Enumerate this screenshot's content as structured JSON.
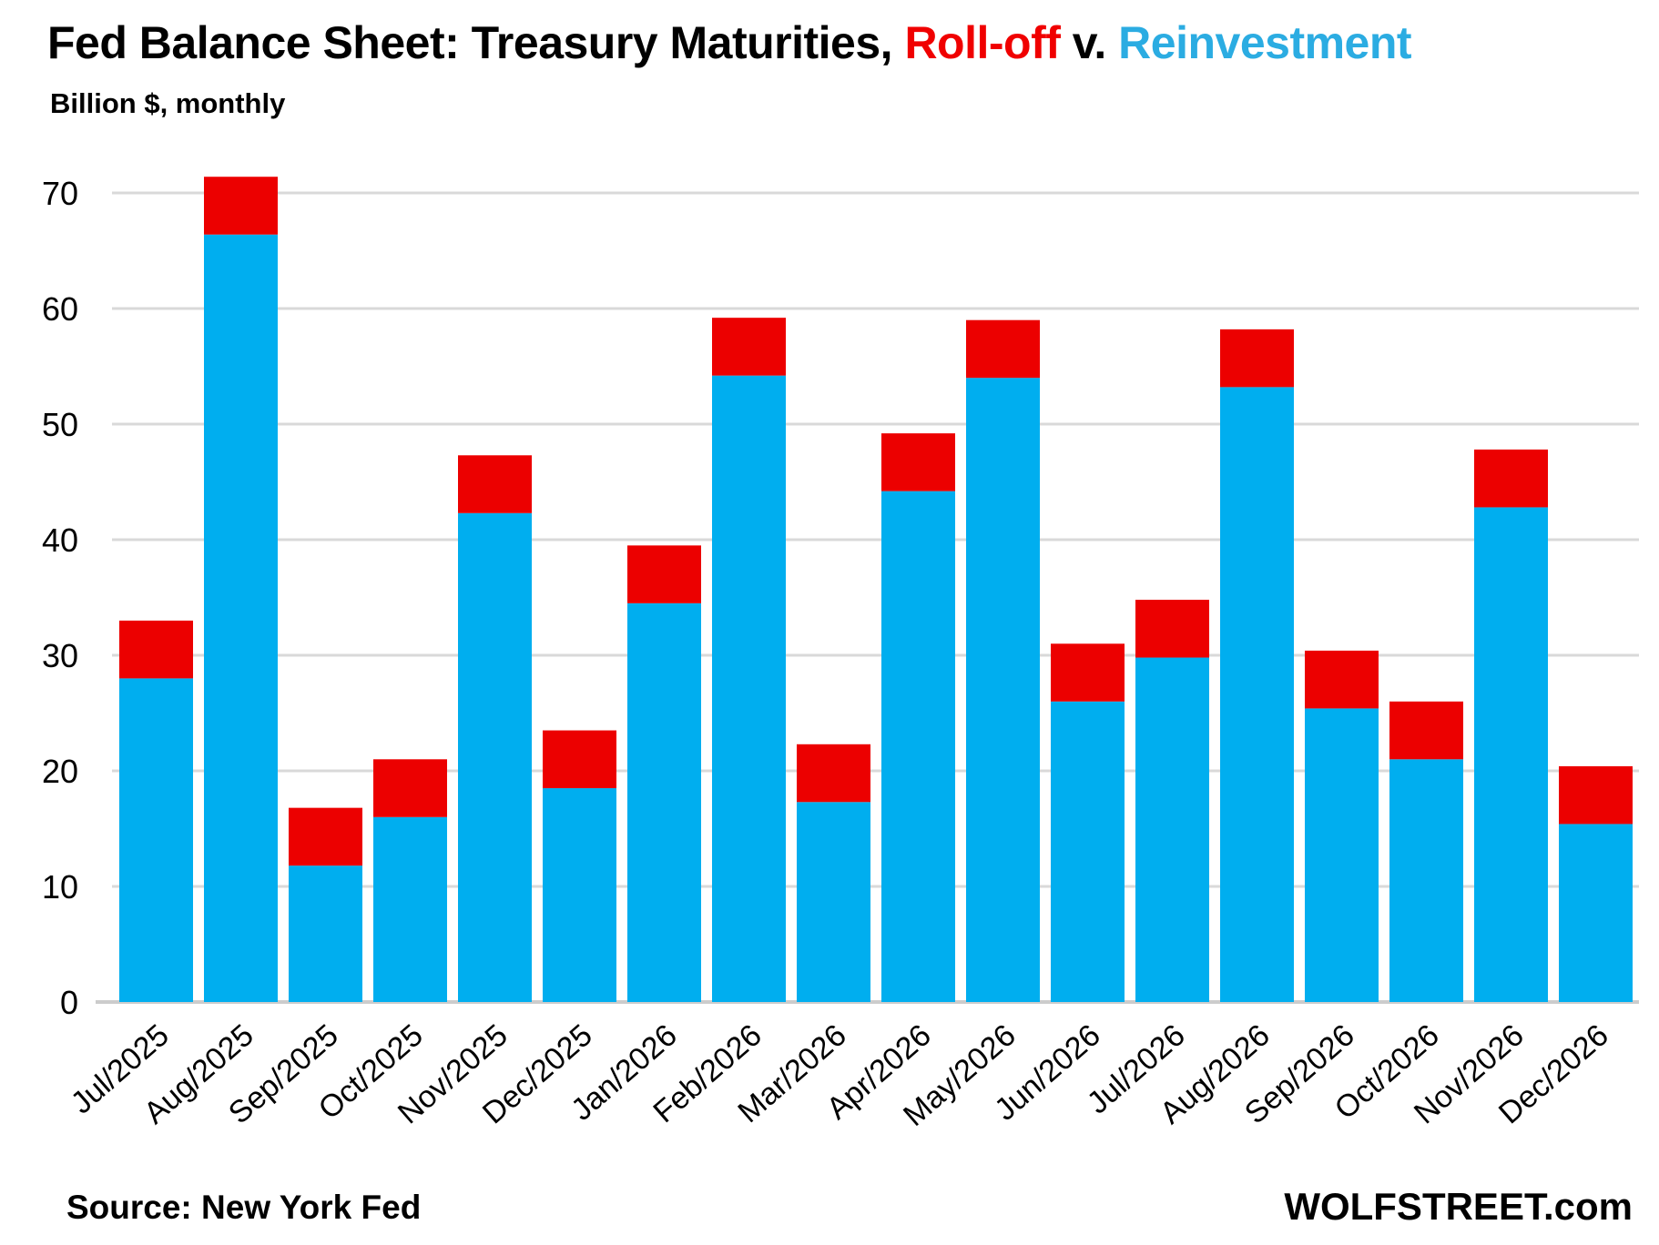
{
  "title": {
    "prefix": "Fed Balance Sheet: Treasury Maturities, ",
    "rolloff_word": "Roll-off",
    "middle": " v. ",
    "reinvestment_word": "Reinvestment"
  },
  "subtitle": "Billion $, monthly",
  "footer": {
    "source": "Source: New York Fed",
    "brand": "WOLFSTREET.com"
  },
  "colors": {
    "rolloff": "#EC0000",
    "reinvestment": "#00AEEF",
    "title_rolloff": "#F00000",
    "title_reinvestment": "#2BACE2",
    "gridline": "#D9D9D9",
    "axis_line": "#CCCCCC",
    "text": "#000000"
  },
  "chart_data": {
    "type": "bar",
    "stacked": true,
    "title": "Fed Balance Sheet: Treasury Maturities, Roll-off v. Reinvestment",
    "subtitle": "Billion $, monthly",
    "xlabel": "",
    "ylabel": "Billion $, monthly",
    "ylim": [
      0,
      72
    ],
    "yticks": [
      0,
      10,
      20,
      30,
      40,
      50,
      60,
      70
    ],
    "grid": "horizontal",
    "legend_position": "in-title",
    "categories": [
      "Jul/2025",
      "Aug/2025",
      "Sep/2025",
      "Oct/2025",
      "Nov/2025",
      "Dec/2025",
      "Jan/2026",
      "Feb/2026",
      "Mar/2026",
      "Apr/2026",
      "May/2026",
      "Jun/2026",
      "Jul/2026",
      "Aug/2026",
      "Sep/2026",
      "Oct/2026",
      "Nov/2026",
      "Dec/2026"
    ],
    "series": [
      {
        "name": "Reinvestment",
        "color_key": "reinvestment",
        "values": [
          28.0,
          66.4,
          11.8,
          16.0,
          42.3,
          18.5,
          34.5,
          54.2,
          17.3,
          44.2,
          54.0,
          26.0,
          29.8,
          53.2,
          25.4,
          21.0,
          42.8,
          15.4
        ]
      },
      {
        "name": "Roll-off",
        "color_key": "rolloff",
        "values": [
          5.0,
          5.0,
          5.0,
          5.0,
          5.0,
          5.0,
          5.0,
          5.0,
          5.0,
          5.0,
          5.0,
          5.0,
          5.0,
          5.0,
          5.0,
          5.0,
          5.0,
          5.0
        ]
      }
    ],
    "stack_totals": [
      33.0,
      71.4,
      16.8,
      21.0,
      47.3,
      23.5,
      39.5,
      59.2,
      22.3,
      49.2,
      59.0,
      31.0,
      34.8,
      58.2,
      30.4,
      26.0,
      47.8,
      20.4
    ]
  }
}
